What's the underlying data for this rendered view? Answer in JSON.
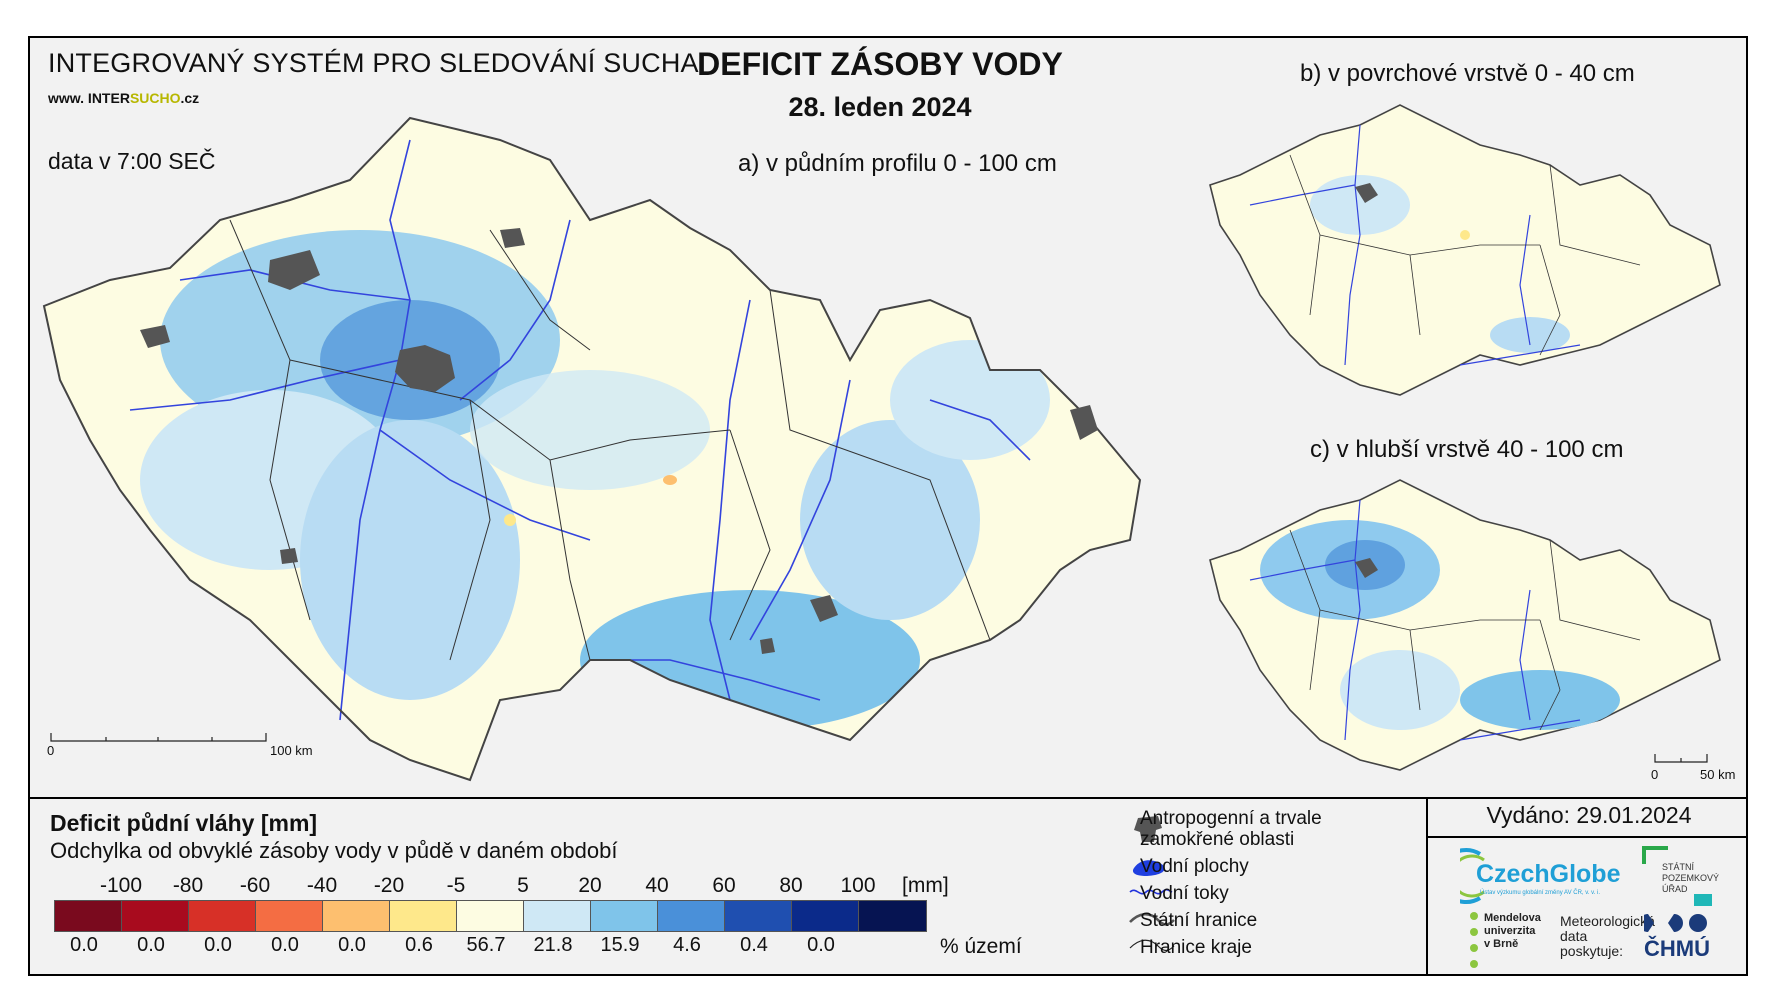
{
  "header": {
    "system_title": "INTEGROVANÝ SYSTÉM PRO SLEDOVÁNÍ SUCHA",
    "website_prefix": "www. INTER",
    "website_accent": "SUCHO",
    "website_suffix": ".cz",
    "data_time": "data v 7:00 SEČ",
    "main_title": "DEFICIT ZÁSOBY VODY",
    "date": "28. leden 2024"
  },
  "maps": {
    "a_title": "a) v půdním profilu 0 - 100 cm",
    "b_title": "b) v povrchové vrstvě 0 - 40 cm",
    "c_title": "c) v hlubší vrstvě 40 - 100 cm",
    "scale_main": {
      "start": "0",
      "end": "100 km"
    },
    "scale_small": {
      "start": "0",
      "end": "50 km"
    }
  },
  "legend": {
    "title": "Deficit půdní vláhy  [mm]",
    "subtitle": "Odchylka od obvyklé zásoby vody v půdě v daném období",
    "breaks": [
      "-100",
      "-80",
      "-60",
      "-40",
      "-20",
      "-5",
      "5",
      "20",
      "40",
      "60",
      "80",
      "100"
    ],
    "unit": "[mm]",
    "colors": [
      "#7a0a1e",
      "#a80b1e",
      "#d73027",
      "#f46d43",
      "#fdbf6f",
      "#fee88b",
      "#fdfce2",
      "#cfe8f5",
      "#7fc4ea",
      "#4a90d9",
      "#1f4fb0",
      "#0b2a8a",
      "#061452"
    ],
    "percentages": [
      "0.0",
      "0.0",
      "0.0",
      "0.0",
      "0.0",
      "0.6",
      "56.7",
      "21.8",
      "15.9",
      "4.6",
      "0.4",
      "0.0"
    ],
    "pct_unit": "% území"
  },
  "symbols": {
    "anthropogenic": "Antropogenní a trvale zamokřené oblasti",
    "water_bodies": "Vodní plochy",
    "rivers": "Vodní toky",
    "state_border": "Státní hranice",
    "region_border": "Hranice kraje"
  },
  "footer": {
    "issued": "Vydáno: 29.01.2024",
    "czechglobe": "CzechGlobe",
    "czechglobe_sub": "Ústav výzkumu globální změny AV ČR, v. v. i.",
    "spu_line1": "STÁTNÍ",
    "spu_line2": "POZEMKOVÝ",
    "spu_line3": "ÚŘAD",
    "mendel_line1": "Mendelova",
    "mendel_line2": "univerzita",
    "mendel_line3": "v Brně",
    "meteo_line1": "Meteorologická",
    "meteo_line2": "data",
    "meteo_line3": "poskytuje:",
    "chmu": "ČHMÚ"
  }
}
